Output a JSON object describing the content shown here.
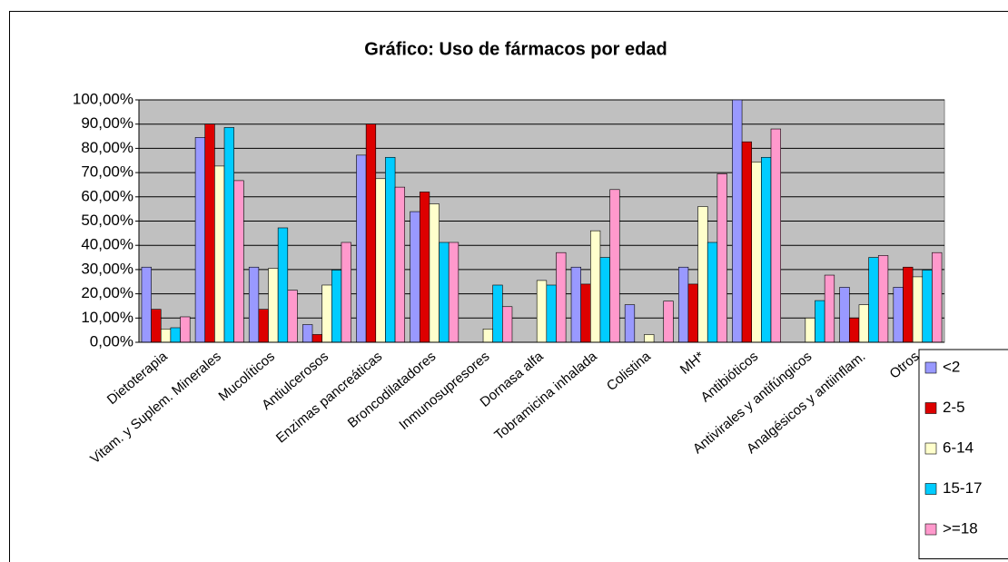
{
  "chart_data": {
    "type": "bar",
    "title": "Gráfico: Uso de fármacos por edad",
    "categories": [
      "Dietoterapia",
      "Vitam. y Suplem. Minerales",
      "Mucolíticos",
      "Antiulcerosos",
      "Enzimas pancreáticas",
      "Broncodilatadores",
      "Inmunosupresores",
      "Dornasa alfa",
      "Tobramicina inhalada",
      "Colistina",
      "MH*",
      "Antibióticos",
      "Antivirales y antifúngicos",
      "Analgésicos y antiinflam.",
      "Otros"
    ],
    "series": [
      {
        "name": "<2",
        "color": "#9999ff",
        "values": [
          31,
          84.5,
          31,
          7.3,
          77.2,
          53.9,
          0,
          0,
          31,
          15.5,
          31,
          100,
          0,
          22.7,
          22.7
        ]
      },
      {
        "name": "2-5",
        "color": "#dd0000",
        "values": [
          13.6,
          90,
          13.6,
          3.2,
          90,
          62,
          0,
          0,
          24,
          0,
          24,
          82.7,
          0,
          10,
          31
        ]
      },
      {
        "name": "6-14",
        "color": "#ffffcc",
        "values": [
          5.5,
          72.7,
          30.5,
          23.6,
          67.5,
          57.1,
          5.5,
          25.5,
          46,
          3.2,
          56,
          74.4,
          10,
          15.5,
          27
        ]
      },
      {
        "name": "15-17",
        "color": "#00ccff",
        "values": [
          6,
          88.6,
          47.2,
          29.8,
          76.3,
          41.2,
          23.6,
          23.6,
          35,
          0,
          41.2,
          76.3,
          17.2,
          35,
          29.8
        ]
      },
      {
        "name": ">=18",
        "color": "#ff99cc",
        "values": [
          10.5,
          66.7,
          21.5,
          41.2,
          64,
          41.2,
          14.7,
          37,
          63,
          17,
          69.5,
          88,
          27.7,
          35.8,
          37
        ]
      }
    ],
    "ylim": [
      0,
      100
    ],
    "yticks": [
      {
        "value": 0,
        "label": "0,00%"
      },
      {
        "value": 10,
        "label": "10,00%"
      },
      {
        "value": 20,
        "label": "20,00%"
      },
      {
        "value": 30,
        "label": "30,00%"
      },
      {
        "value": 40,
        "label": "40,00%"
      },
      {
        "value": 50,
        "label": "50,00%"
      },
      {
        "value": 60,
        "label": "60,00%"
      },
      {
        "value": 70,
        "label": "70,00%"
      },
      {
        "value": 80,
        "label": "80,00%"
      },
      {
        "value": 90,
        "label": "90,00%"
      },
      {
        "value": 100,
        "label": "100,00%"
      }
    ],
    "grid": true,
    "plot_background": "#c0c0c0",
    "legend": "right"
  }
}
